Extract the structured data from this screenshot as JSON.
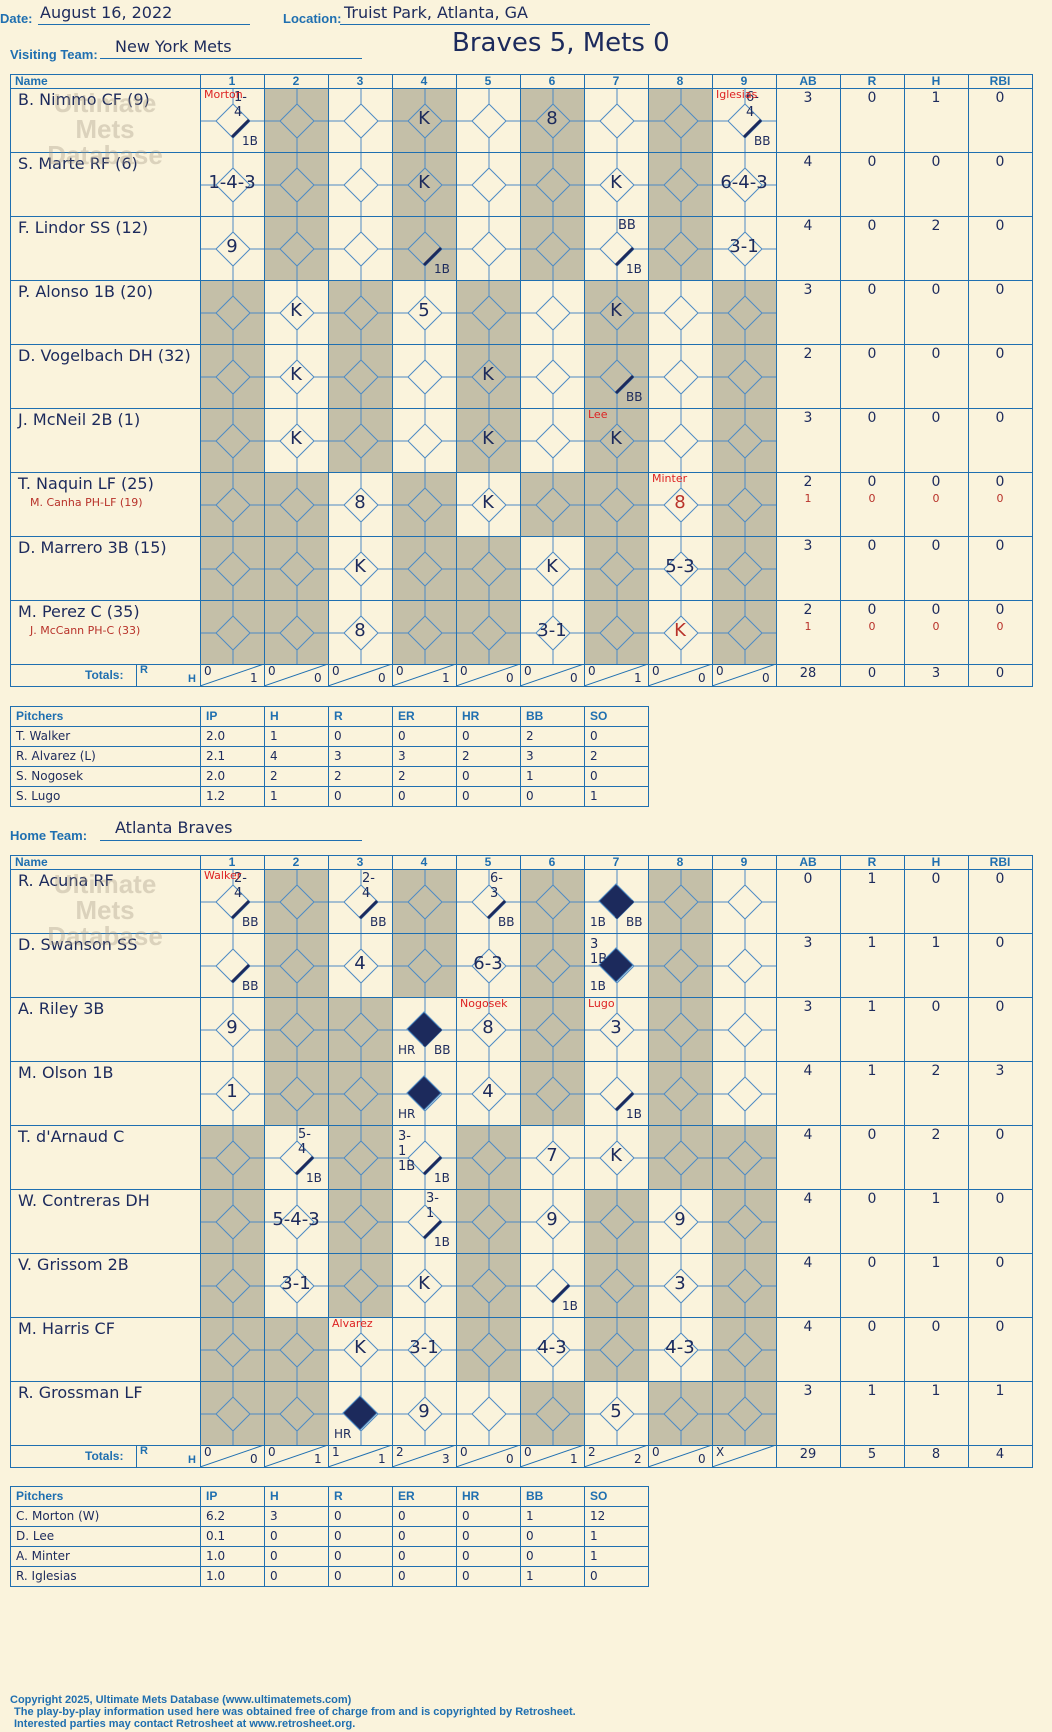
{
  "header": {
    "date_label": "Date:",
    "date": "August 16, 2022",
    "location_label": "Location:",
    "location": "Truist Park, Atlanta, GA",
    "visiting_label": "Visiting Team:",
    "visiting_team": "New York Mets",
    "home_label": "Home Team:",
    "home_team": "Atlanta Braves",
    "score": "Braves 5, Mets 0"
  },
  "columns": {
    "name": "Name",
    "innings": [
      "1",
      "2",
      "3",
      "4",
      "5",
      "6",
      "7",
      "8",
      "9"
    ],
    "stats": [
      "AB",
      "R",
      "H",
      "RBI"
    ],
    "totals_label": "Totals:",
    "r": "R",
    "h": "H"
  },
  "watermark": [
    "Ultimate",
    "Mets",
    "Database"
  ],
  "watermark_url": "ultimatemets.com",
  "visitors": {
    "batters": [
      {
        "name": "B. Nimmo CF (9)",
        "sub": "",
        "stats": [
          "3",
          "0",
          "1",
          "0"
        ],
        "sub_stats": []
      },
      {
        "name": "S. Marte RF (6)",
        "sub": "",
        "stats": [
          "4",
          "0",
          "0",
          "0"
        ],
        "sub_stats": []
      },
      {
        "name": "F. Lindor SS (12)",
        "sub": "",
        "stats": [
          "4",
          "0",
          "2",
          "0"
        ],
        "sub_stats": []
      },
      {
        "name": "P. Alonso 1B (20)",
        "sub": "",
        "stats": [
          "3",
          "0",
          "0",
          "0"
        ],
        "sub_stats": []
      },
      {
        "name": "D. Vogelbach DH (32)",
        "sub": "",
        "stats": [
          "2",
          "0",
          "0",
          "0"
        ],
        "sub_stats": []
      },
      {
        "name": "J. McNeil 2B (1)",
        "sub": "",
        "stats": [
          "3",
          "0",
          "0",
          "0"
        ],
        "sub_stats": []
      },
      {
        "name": "T. Naquin LF (25)",
        "sub": "M. Canha PH-LF (19)",
        "stats": [
          "2",
          "0",
          "0",
          "0"
        ],
        "sub_stats": [
          "1",
          "0",
          "0",
          "0"
        ]
      },
      {
        "name": "D. Marrero 3B (15)",
        "sub": "",
        "stats": [
          "3",
          "0",
          "0",
          "0"
        ],
        "sub_stats": []
      },
      {
        "name": "M. Perez C (35)",
        "sub": "J. McCann PH-C (33)",
        "stats": [
          "2",
          "0",
          "0",
          "0"
        ],
        "sub_stats": [
          "1",
          "0",
          "0",
          "0"
        ]
      }
    ],
    "plays": [
      {
        "row": 0,
        "inn": 1,
        "text": "",
        "small": "1-4",
        "sm_pos": "tr",
        "hit": "1B"
      },
      {
        "row": 0,
        "inn": 4,
        "text": "K"
      },
      {
        "row": 0,
        "inn": 6,
        "text": "8"
      },
      {
        "row": 0,
        "inn": 9,
        "text": "",
        "small": "6-4",
        "sm_pos": "tr",
        "hit": "BB"
      },
      {
        "row": 1,
        "inn": 1,
        "text": "1-4-3"
      },
      {
        "row": 1,
        "inn": 4,
        "text": "K"
      },
      {
        "row": 1,
        "inn": 7,
        "text": "K"
      },
      {
        "row": 1,
        "inn": 9,
        "text": "6-4-3"
      },
      {
        "row": 2,
        "inn": 1,
        "text": "9"
      },
      {
        "row": 2,
        "inn": 4,
        "text": "",
        "hit": "1B"
      },
      {
        "row": 2,
        "inn": 7,
        "text": "",
        "small": "BB",
        "sm_pos": "tr",
        "hit": "1B"
      },
      {
        "row": 2,
        "inn": 9,
        "text": "3-1"
      },
      {
        "row": 3,
        "inn": 2,
        "text": "K"
      },
      {
        "row": 3,
        "inn": 4,
        "text": "5"
      },
      {
        "row": 3,
        "inn": 7,
        "text": "K"
      },
      {
        "row": 4,
        "inn": 2,
        "text": "K"
      },
      {
        "row": 4,
        "inn": 5,
        "text": "K"
      },
      {
        "row": 4,
        "inn": 7,
        "text": "",
        "hit": "BB"
      },
      {
        "row": 5,
        "inn": 2,
        "text": "K"
      },
      {
        "row": 5,
        "inn": 5,
        "text": "K"
      },
      {
        "row": 5,
        "inn": 7,
        "text": "K"
      },
      {
        "row": 6,
        "inn": 3,
        "text": "8"
      },
      {
        "row": 6,
        "inn": 5,
        "text": "K"
      },
      {
        "row": 6,
        "inn": 8,
        "text": "8",
        "red": true
      },
      {
        "row": 7,
        "inn": 3,
        "text": "K"
      },
      {
        "row": 7,
        "inn": 6,
        "text": "K"
      },
      {
        "row": 7,
        "inn": 8,
        "text": "5-3"
      },
      {
        "row": 8,
        "inn": 3,
        "text": "8"
      },
      {
        "row": 8,
        "inn": 6,
        "text": "3-1"
      },
      {
        "row": 8,
        "inn": 8,
        "text": "K",
        "red": true
      }
    ],
    "pitch_changes": [
      {
        "row": 0,
        "inn": 1,
        "name": "Morton"
      },
      {
        "row": 0,
        "inn": 9,
        "name": "Iglesias"
      },
      {
        "row": 5,
        "inn": 7,
        "name": "Lee"
      },
      {
        "row": 6,
        "inn": 8,
        "name": "Minter"
      }
    ],
    "inning_totals": [
      [
        "0",
        "1"
      ],
      [
        "0",
        "0"
      ],
      [
        "0",
        "0"
      ],
      [
        "0",
        "1"
      ],
      [
        "0",
        "0"
      ],
      [
        "0",
        "0"
      ],
      [
        "0",
        "1"
      ],
      [
        "0",
        "0"
      ],
      [
        "0",
        "0"
      ]
    ],
    "totals": [
      "28",
      "0",
      "3",
      "0"
    ],
    "shaded": [
      [
        2,
        4,
        6,
        8
      ],
      [
        2,
        4,
        6,
        8
      ],
      [
        2,
        4,
        6,
        8
      ],
      [
        1,
        3,
        5,
        7,
        9
      ],
      [
        1,
        3,
        5,
        7,
        9
      ],
      [
        1,
        3,
        5,
        7,
        9
      ],
      [
        1,
        2,
        4,
        6,
        7,
        9
      ],
      [
        1,
        2,
        4,
        5,
        7,
        9
      ],
      [
        1,
        2,
        4,
        5,
        7,
        9
      ]
    ]
  },
  "visitor_pitchers": {
    "headers": [
      "Pitchers",
      "IP",
      "H",
      "R",
      "ER",
      "HR",
      "BB",
      "SO"
    ],
    "rows": [
      [
        "T. Walker",
        "2.0",
        "1",
        "0",
        "0",
        "0",
        "2",
        "0"
      ],
      [
        "R. Alvarez (L)",
        "2.1",
        "4",
        "3",
        "3",
        "2",
        "3",
        "2"
      ],
      [
        "S. Nogosek",
        "2.0",
        "2",
        "2",
        "2",
        "0",
        "1",
        "0"
      ],
      [
        "S. Lugo",
        "1.2",
        "1",
        "0",
        "0",
        "0",
        "0",
        "1"
      ]
    ]
  },
  "home": {
    "batters": [
      {
        "name": "R. Acuna RF",
        "stats": [
          "0",
          "1",
          "0",
          "0"
        ]
      },
      {
        "name": "D. Swanson SS",
        "stats": [
          "3",
          "1",
          "1",
          "0"
        ]
      },
      {
        "name": "A. Riley 3B",
        "stats": [
          "3",
          "1",
          "0",
          "0"
        ]
      },
      {
        "name": "M. Olson 1B",
        "stats": [
          "4",
          "1",
          "2",
          "3"
        ]
      },
      {
        "name": "T. d'Arnaud C",
        "stats": [
          "4",
          "0",
          "2",
          "0"
        ]
      },
      {
        "name": "W. Contreras DH",
        "stats": [
          "4",
          "0",
          "1",
          "0"
        ]
      },
      {
        "name": "V. Grissom 2B",
        "stats": [
          "4",
          "0",
          "1",
          "0"
        ]
      },
      {
        "name": "M. Harris CF",
        "stats": [
          "4",
          "0",
          "0",
          "0"
        ]
      },
      {
        "name": "R. Grossman LF",
        "stats": [
          "3",
          "1",
          "1",
          "1"
        ]
      }
    ],
    "plays": [
      {
        "row": 0,
        "inn": 1,
        "text": "",
        "small": "2-4",
        "sm_pos": "tr",
        "hit": "BB"
      },
      {
        "row": 0,
        "inn": 3,
        "text": "",
        "small": "2-4",
        "sm_pos": "tr",
        "hit": "BB"
      },
      {
        "row": 0,
        "inn": 5,
        "text": "",
        "small": "6-3",
        "sm_pos": "tr",
        "hit": "BB"
      },
      {
        "row": 0,
        "inn": 7,
        "text": "",
        "run": true,
        "hit": "BB",
        "hit2": "1B"
      },
      {
        "row": 1,
        "inn": 1,
        "text": "",
        "hit": "BB"
      },
      {
        "row": 1,
        "inn": 3,
        "text": "4"
      },
      {
        "row": 1,
        "inn": 5,
        "text": "6-3"
      },
      {
        "row": 1,
        "inn": 7,
        "text": "",
        "run": true,
        "small": "3  1B",
        "sm_pos": "tl",
        "hit2": "1B"
      },
      {
        "row": 2,
        "inn": 1,
        "text": "9"
      },
      {
        "row": 2,
        "inn": 4,
        "text": "",
        "run": true,
        "hit": "BB",
        "hit2": "HR"
      },
      {
        "row": 2,
        "inn": 5,
        "text": "8"
      },
      {
        "row": 2,
        "inn": 7,
        "text": "3"
      },
      {
        "row": 3,
        "inn": 1,
        "text": "1"
      },
      {
        "row": 3,
        "inn": 4,
        "text": "",
        "run": true,
        "hit2": "HR"
      },
      {
        "row": 3,
        "inn": 5,
        "text": "4"
      },
      {
        "row": 3,
        "inn": 7,
        "text": "",
        "hit": "1B"
      },
      {
        "row": 4,
        "inn": 2,
        "text": "",
        "small": "5-4",
        "sm_pos": "tr",
        "hit": "1B"
      },
      {
        "row": 4,
        "inn": 4,
        "text": "",
        "small": "3-1  1B",
        "sm_pos": "tl",
        "hit": "1B"
      },
      {
        "row": 4,
        "inn": 6,
        "text": "7"
      },
      {
        "row": 4,
        "inn": 7,
        "text": "K"
      },
      {
        "row": 5,
        "inn": 2,
        "text": "5-4-3"
      },
      {
        "row": 5,
        "inn": 4,
        "text": "",
        "small": "3-1",
        "sm_pos": "tr",
        "hit": "1B"
      },
      {
        "row": 5,
        "inn": 6,
        "text": "9"
      },
      {
        "row": 5,
        "inn": 8,
        "text": "9"
      },
      {
        "row": 6,
        "inn": 2,
        "text": "3-1"
      },
      {
        "row": 6,
        "inn": 4,
        "text": "K"
      },
      {
        "row": 6,
        "inn": 6,
        "text": "",
        "hit": "1B"
      },
      {
        "row": 6,
        "inn": 8,
        "text": "3"
      },
      {
        "row": 7,
        "inn": 3,
        "text": "K"
      },
      {
        "row": 7,
        "inn": 4,
        "text": "3-1"
      },
      {
        "row": 7,
        "inn": 6,
        "text": "4-3"
      },
      {
        "row": 7,
        "inn": 8,
        "text": "4-3"
      },
      {
        "row": 8,
        "inn": 3,
        "text": "",
        "run": true,
        "hit2": "HR"
      },
      {
        "row": 8,
        "inn": 4,
        "text": "9"
      },
      {
        "row": 8,
        "inn": 7,
        "text": "5"
      }
    ],
    "pitch_changes": [
      {
        "row": 0,
        "inn": 1,
        "name": "Walker"
      },
      {
        "row": 2,
        "inn": 5,
        "name": "Nogosek"
      },
      {
        "row": 2,
        "inn": 7,
        "name": "Lugo"
      },
      {
        "row": 7,
        "inn": 3,
        "name": "Alvarez"
      }
    ],
    "inning_totals": [
      [
        "0",
        "0"
      ],
      [
        "0",
        "1"
      ],
      [
        "1",
        "1"
      ],
      [
        "2",
        "3"
      ],
      [
        "0",
        "0"
      ],
      [
        "0",
        "1"
      ],
      [
        "2",
        "2"
      ],
      [
        "0",
        "0"
      ],
      [
        "X",
        ""
      ]
    ],
    "totals": [
      "29",
      "5",
      "8",
      "4"
    ],
    "shaded": [
      [
        2,
        4,
        6,
        8
      ],
      [
        2,
        4,
        6,
        8
      ],
      [
        2,
        3,
        6,
        8
      ],
      [
        2,
        3,
        6,
        8
      ],
      [
        1,
        3,
        5,
        8,
        9
      ],
      [
        1,
        3,
        5,
        7,
        9
      ],
      [
        1,
        3,
        5,
        7,
        9
      ],
      [
        1,
        2,
        5,
        7,
        9
      ],
      [
        1,
        2,
        6,
        8,
        9
      ]
    ]
  },
  "home_pitchers": {
    "headers": [
      "Pitchers",
      "IP",
      "H",
      "R",
      "ER",
      "HR",
      "BB",
      "SO"
    ],
    "rows": [
      [
        "C. Morton (W)",
        "6.2",
        "3",
        "0",
        "0",
        "0",
        "1",
        "12"
      ],
      [
        "D. Lee",
        "0.1",
        "0",
        "0",
        "0",
        "0",
        "0",
        "1"
      ],
      [
        "A. Minter",
        "1.0",
        "0",
        "0",
        "0",
        "0",
        "0",
        "1"
      ],
      [
        "R. Iglesias",
        "1.0",
        "0",
        "0",
        "0",
        "0",
        "1",
        "0"
      ]
    ]
  },
  "footer": [
    "Copyright 2025, Ultimate Mets Database (www.ultimatemets.com)",
    "The play-by-play information used here was obtained free of charge from and is copyrighted by Retrosheet.",
    "Interested parties may contact Retrosheet at www.retrosheet.org."
  ]
}
